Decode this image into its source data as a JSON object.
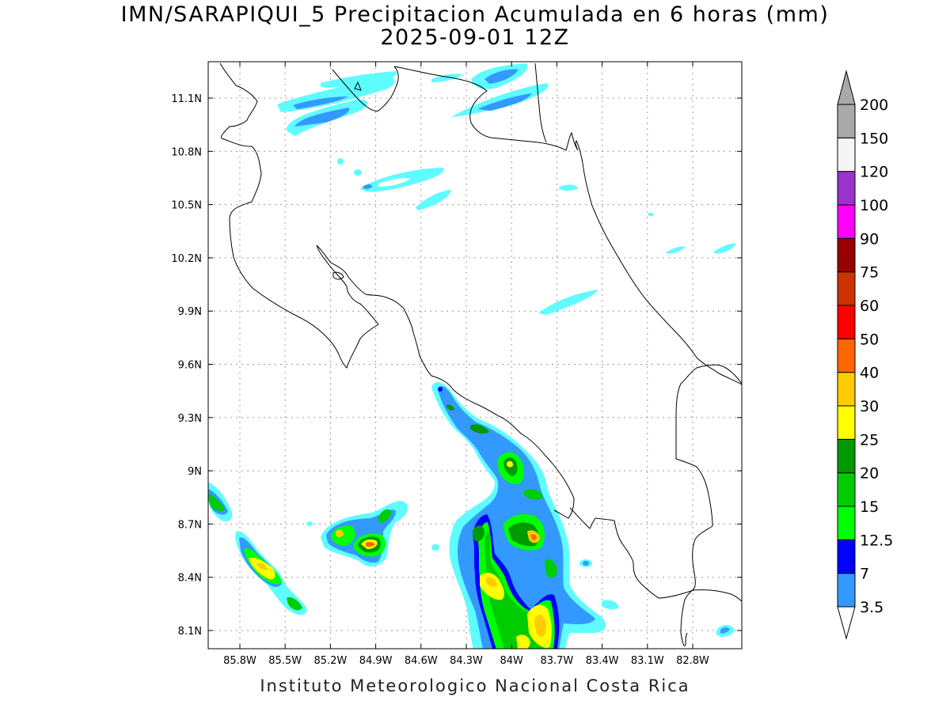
{
  "title": "IMN/SARAPIQUI_5 Precipitacion Acumulada en 6 horas (mm)",
  "subtitle": "2025-09-01 12Z",
  "footer": "Instituto Meteorologico Nacional Costa Rica",
  "lat_ticks": [
    "11.1N",
    "10.8N",
    "10.5N",
    "10.2N",
    "9.9N",
    "9.6N",
    "9.3N",
    "9N",
    "8.7N",
    "8.4N",
    "8.1N"
  ],
  "lon_ticks": [
    "85.8W",
    "85.5W",
    "85.2W",
    "84.9W",
    "84.6W",
    "84.3W",
    "84W",
    "83.7W",
    "83.4W",
    "83.1W",
    "82.8W"
  ],
  "colorbar": {
    "levels": [
      "3.5",
      "7",
      "12.5",
      "15",
      "20",
      "25",
      "30",
      "40",
      "50",
      "60",
      "75",
      "90",
      "100",
      "120",
      "150",
      "200"
    ],
    "colors": [
      "#5ffcff",
      "#3399ff",
      "#0000ff",
      "#00ff00",
      "#00cc00",
      "#009900",
      "#ffff00",
      "#ffcc00",
      "#ff6600",
      "#ff0000",
      "#cc3300",
      "#990000",
      "#ff00ff",
      "#9933cc",
      "#f5f5f5",
      "#a9a9a9"
    ]
  },
  "colors": {
    "c1": "#5ffcff",
    "c2": "#3399ff",
    "c3": "#0000ff",
    "c4": "#00ff00",
    "c5": "#00cc00",
    "c6": "#009900",
    "c7": "#ffff00",
    "c8": "#ffcc00",
    "c9": "#ff6600"
  }
}
